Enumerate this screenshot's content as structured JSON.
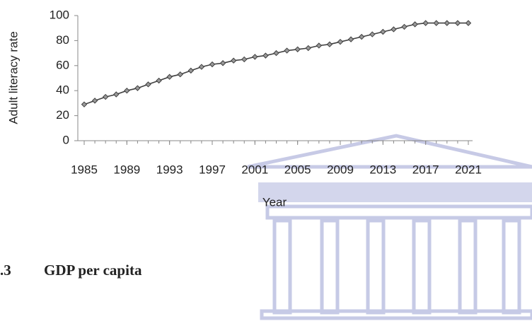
{
  "chart_data": {
    "type": "line",
    "y_label": "Adult literacy rate",
    "x_label": "Year",
    "x": [
      1985,
      1986,
      1987,
      1988,
      1989,
      1990,
      1991,
      1992,
      1993,
      1994,
      1995,
      1996,
      1997,
      1998,
      1999,
      2000,
      2001,
      2002,
      2003,
      2004,
      2005,
      2006,
      2007,
      2008,
      2009,
      2010,
      2011,
      2012,
      2013,
      2014,
      2015,
      2016,
      2017,
      2018,
      2019,
      2020,
      2021
    ],
    "values": [
      29,
      32,
      35,
      37,
      40,
      42,
      45,
      48,
      51,
      53,
      56,
      59,
      61,
      62,
      64,
      65,
      67,
      68,
      70,
      72,
      73,
      74,
      76,
      77,
      79,
      81,
      83,
      85,
      87,
      89,
      91,
      93,
      94,
      94,
      94,
      94,
      94
    ],
    "color": "#404040",
    "xlim": [
      1985,
      2021
    ],
    "xticks": [
      1985,
      1989,
      1993,
      1997,
      2001,
      2005,
      2009,
      2013,
      2017,
      2021
    ],
    "ylim": [
      0,
      100
    ],
    "yticks": [
      0,
      20,
      40,
      60,
      80,
      100
    ],
    "grid": false
  },
  "heading": {
    "number": ".3",
    "title": "GDP per capita"
  }
}
